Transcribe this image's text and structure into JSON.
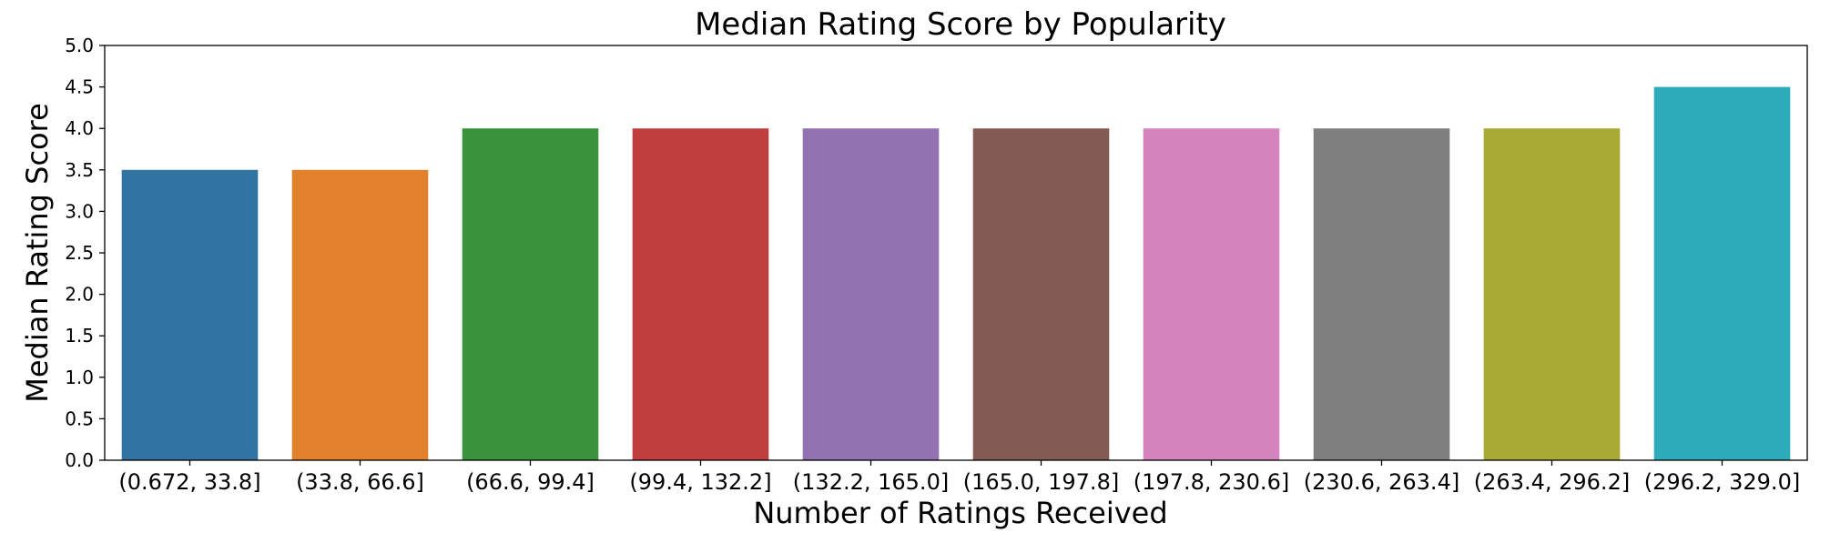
{
  "chart_data": {
    "type": "bar",
    "title": "Median Rating Score by Popularity",
    "xlabel": "Number of Ratings Received",
    "ylabel": "Median Rating Score",
    "categories": [
      "(0.672, 33.8]",
      "(33.8, 66.6]",
      "(66.6, 99.4]",
      "(99.4, 132.2]",
      "(132.2, 165.0]",
      "(165.0, 197.8]",
      "(197.8, 230.6]",
      "(230.6, 263.4]",
      "(263.4, 296.2]",
      "(296.2, 329.0]"
    ],
    "values": [
      3.5,
      3.5,
      4.0,
      4.0,
      4.0,
      4.0,
      4.0,
      4.0,
      4.0,
      4.5
    ],
    "colors": [
      "#3274a1",
      "#e1812c",
      "#3a923a",
      "#c03d3e",
      "#9372b2",
      "#845b53",
      "#d684bd",
      "#7f7f7f",
      "#a9aa35",
      "#2eabb8"
    ],
    "ylim": [
      0,
      5.0
    ],
    "yticks": [
      "0.0",
      "0.5",
      "1.0",
      "1.5",
      "2.0",
      "2.5",
      "3.0",
      "3.5",
      "4.0",
      "4.5",
      "5.0"
    ],
    "grid": false,
    "legend": "none"
  }
}
